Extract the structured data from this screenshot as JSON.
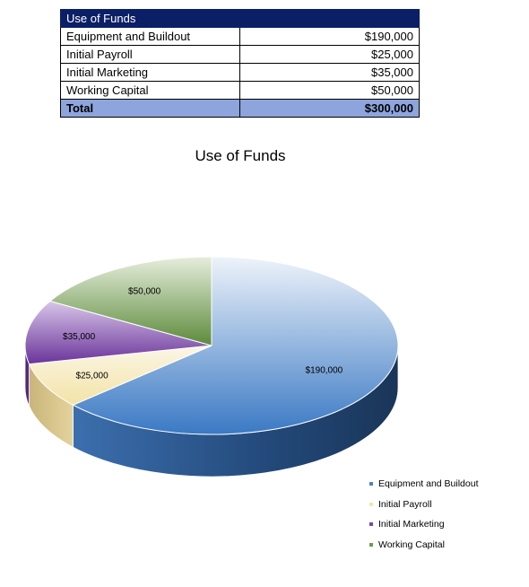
{
  "table": {
    "header": "Use of Funds",
    "rows": [
      {
        "label": "Equipment and Buildout",
        "value": "$190,000"
      },
      {
        "label": "Initial Payroll",
        "value": "$25,000"
      },
      {
        "label": "Initial Marketing",
        "value": "$35,000"
      },
      {
        "label": "Working Capital",
        "value": "$50,000"
      }
    ],
    "total": {
      "label": "Total",
      "value": "$300,000"
    }
  },
  "chart_data": {
    "type": "pie",
    "title": "Use of Funds",
    "categories": [
      "Equipment and Buildout",
      "Initial Payroll",
      "Initial Marketing",
      "Working Capital"
    ],
    "values": [
      190000,
      25000,
      35000,
      50000
    ],
    "data_labels": [
      "$190,000",
      "$25,000",
      "$35,000",
      "$50,000"
    ],
    "colors": [
      "#4a84c8",
      "#f2e6b0",
      "#7b45a8",
      "#6f9a4c"
    ],
    "legend": "bottom-right",
    "style": "3d"
  }
}
